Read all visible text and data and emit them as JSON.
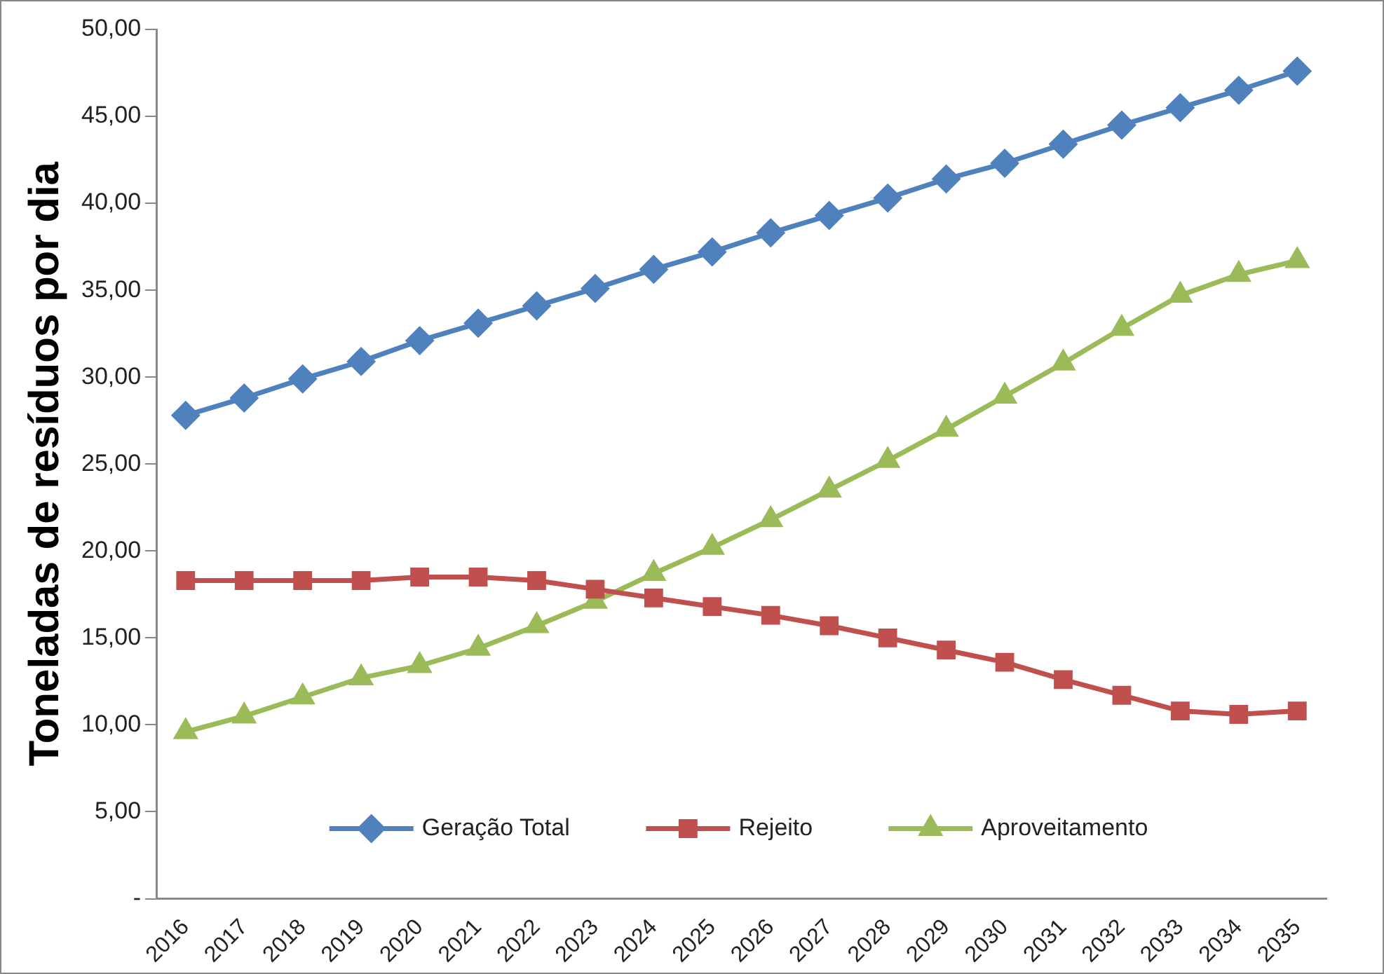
{
  "chart_data": {
    "type": "line",
    "ylabel": "Toneladas de resíduos por dia",
    "categories": [
      "2016",
      "2017",
      "2018",
      "2019",
      "2020",
      "2021",
      "2022",
      "2023",
      "2024",
      "2025",
      "2026",
      "2027",
      "2028",
      "2029",
      "2030",
      "2031",
      "2032",
      "2033",
      "2034",
      "2035"
    ],
    "series": [
      {
        "name": "Geração Total",
        "color": "#4f81bd",
        "marker": "diamond",
        "values": [
          27.8,
          28.8,
          29.9,
          30.9,
          32.1,
          33.1,
          34.1,
          35.1,
          36.2,
          37.2,
          38.3,
          39.3,
          40.3,
          41.4,
          42.3,
          43.4,
          44.5,
          45.5,
          46.5,
          47.6
        ]
      },
      {
        "name": "Rejeito",
        "color": "#c0504d",
        "marker": "square",
        "values": [
          18.3,
          18.3,
          18.3,
          18.3,
          18.5,
          18.5,
          18.3,
          17.8,
          17.3,
          16.8,
          16.3,
          15.7,
          15.0,
          14.3,
          13.6,
          12.6,
          11.7,
          10.8,
          10.6,
          10.8
        ]
      },
      {
        "name": "Aproveitamento",
        "color": "#9bbb59",
        "marker": "triangle",
        "values": [
          9.6,
          10.5,
          11.6,
          12.7,
          13.4,
          14.4,
          15.7,
          17.1,
          18.7,
          20.2,
          21.8,
          23.5,
          25.2,
          27.0,
          28.9,
          30.8,
          32.8,
          34.7,
          35.9,
          36.7
        ]
      }
    ],
    "ylim": [
      0,
      50
    ],
    "yticks": [
      {
        "value": 0,
        "label": "-"
      },
      {
        "value": 5,
        "label": "5,00"
      },
      {
        "value": 10,
        "label": "10,00"
      },
      {
        "value": 15,
        "label": "15,00"
      },
      {
        "value": 20,
        "label": "20,00"
      },
      {
        "value": 25,
        "label": "25,00"
      },
      {
        "value": 30,
        "label": "30,00"
      },
      {
        "value": 35,
        "label": "35,00"
      },
      {
        "value": 40,
        "label": "40,00"
      },
      {
        "value": 45,
        "label": "45,00"
      },
      {
        "value": 50,
        "label": "50,00"
      }
    ],
    "grid": false,
    "legend": "bottom",
    "line_style": "solid"
  }
}
